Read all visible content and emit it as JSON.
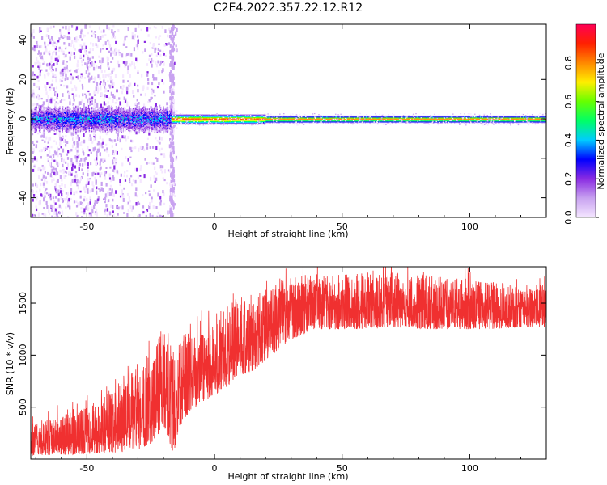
{
  "figure": {
    "title": "C2E4.2022.357.22.12.R12"
  },
  "chart_data": [
    {
      "type": "heatmap",
      "xlabel": "Height of straight line (km)",
      "ylabel": "Frequency (Hz)",
      "xlim": [
        -72,
        130
      ],
      "ylim": [
        -50,
        48
      ],
      "xticks": [
        -50,
        0,
        50,
        100
      ],
      "yticks": [
        -40,
        -20,
        0,
        20,
        40
      ],
      "grid": false,
      "colorbar": {
        "label": "Normalized spectral amplitude",
        "range": [
          0,
          1
        ],
        "ticks": [
          0.0,
          0.2,
          0.4,
          0.6,
          0.8
        ],
        "colormap": [
          "#f4e6ff",
          "#c8a2f0",
          "#8a2be2",
          "#0000ff",
          "#00ccff",
          "#00ff66",
          "#66ff00",
          "#ffee00",
          "#ff8800",
          "#ff2000",
          "#ff0055"
        ]
      },
      "features": {
        "carrier_frequency_hz": 0,
        "carrier_amplitude_after_onset": 0.95,
        "onset_height_km": -17,
        "noise_region_end_km": -15
      }
    },
    {
      "type": "line",
      "xlabel": "Height of straight line (km)",
      "ylabel": "SNR (10 * v/v)",
      "xlim": [
        -72,
        130
      ],
      "ylim": [
        0,
        1850
      ],
      "xticks": [
        -50,
        0,
        50,
        100
      ],
      "yticks": [
        500,
        1000,
        1500
      ],
      "grid": false,
      "series": [
        {
          "color": "#f03030",
          "envelope_x": [
            -72,
            -60,
            -50,
            -40,
            -30,
            -25,
            -20,
            -16,
            -14,
            -10,
            -5,
            0,
            5,
            10,
            15,
            20,
            25,
            30,
            35,
            40,
            50,
            60,
            70,
            80,
            90,
            100,
            110,
            120,
            130
          ],
          "envelope_lo": [
            40,
            40,
            50,
            60,
            80,
            150,
            300,
            50,
            300,
            450,
            550,
            600,
            700,
            800,
            850,
            950,
            1050,
            1150,
            1200,
            1250,
            1250,
            1250,
            1270,
            1250,
            1250,
            1250,
            1250,
            1270,
            1270
          ],
          "envelope_hi": [
            350,
            420,
            500,
            700,
            900,
            1050,
            1250,
            1050,
            1100,
            1250,
            1350,
            1400,
            1500,
            1550,
            1600,
            1650,
            1700,
            1750,
            1780,
            1800,
            1800,
            1780,
            1800,
            1780,
            1750,
            1720,
            1700,
            1680,
            1680
          ]
        }
      ]
    }
  ]
}
